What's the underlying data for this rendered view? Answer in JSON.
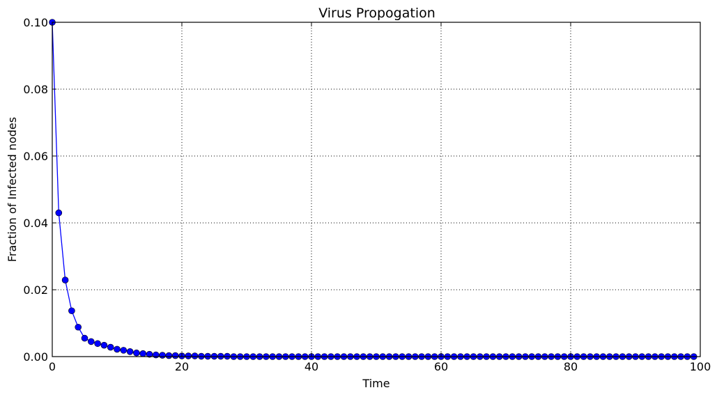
{
  "chart_data": {
    "type": "line",
    "title": "Virus Propogation",
    "xlabel": "Time",
    "ylabel": "Fraction of Infected nodes",
    "xlim": [
      0,
      100
    ],
    "ylim": [
      0,
      0.1
    ],
    "xticks": [
      "0",
      "20",
      "40",
      "60",
      "80",
      "100"
    ],
    "yticks": [
      "0.00",
      "0.02",
      "0.04",
      "0.06",
      "0.08",
      "0.10"
    ],
    "grid": true,
    "line_color": "#0000ff",
    "marker": "circle",
    "x": [
      0,
      1,
      2,
      3,
      4,
      5,
      6,
      7,
      8,
      9,
      10,
      11,
      12,
      13,
      14,
      15,
      16,
      17,
      18,
      19,
      20,
      21,
      22,
      23,
      24,
      25,
      26,
      27,
      28,
      29,
      30,
      31,
      32,
      33,
      34,
      35,
      36,
      37,
      38,
      39,
      40,
      41,
      42,
      43,
      44,
      45,
      46,
      47,
      48,
      49,
      50,
      51,
      52,
      53,
      54,
      55,
      56,
      57,
      58,
      59,
      60,
      61,
      62,
      63,
      64,
      65,
      66,
      67,
      68,
      69,
      70,
      71,
      72,
      73,
      74,
      75,
      76,
      77,
      78,
      79,
      80,
      81,
      82,
      83,
      84,
      85,
      86,
      87,
      88,
      89,
      90,
      91,
      92,
      93,
      94,
      95,
      96,
      97,
      98,
      99
    ],
    "y": [
      0.1,
      0.043,
      0.0229,
      0.0137,
      0.0088,
      0.0055,
      0.0045,
      0.0039,
      0.0034,
      0.0028,
      0.0022,
      0.0019,
      0.0015,
      0.0011,
      0.0009,
      0.0007,
      0.0005,
      0.0004,
      0.0003,
      0.0003,
      0.0002,
      0.0002,
      0.0002,
      0.0001,
      0.0001,
      0.0001,
      0.0001,
      0.0001,
      0,
      0,
      0,
      0,
      0,
      0,
      0,
      0,
      0,
      0,
      0,
      0,
      0,
      0,
      0,
      0,
      0,
      0,
      0,
      0,
      0,
      0,
      0,
      0,
      0,
      0,
      0,
      0,
      0,
      0,
      0,
      0,
      0,
      0,
      0,
      0,
      0,
      0,
      0,
      0,
      0,
      0,
      0,
      0,
      0,
      0,
      0,
      0,
      0,
      0,
      0,
      0,
      0,
      0,
      0,
      0,
      0,
      0,
      0,
      0,
      0,
      0,
      0,
      0,
      0,
      0,
      0,
      0,
      0,
      0,
      0,
      0
    ]
  }
}
